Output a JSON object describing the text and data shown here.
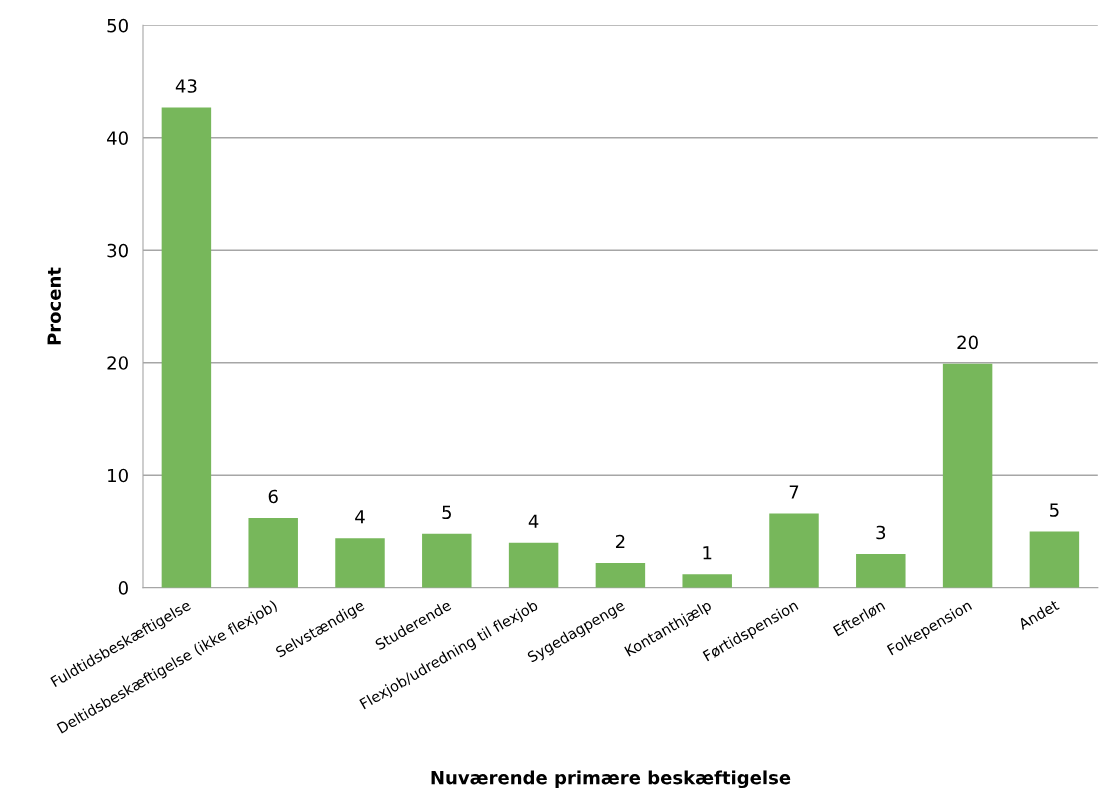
{
  "chart_data": {
    "type": "bar",
    "xlabel": "Nuværende primære beskæftigelse",
    "ylabel": "Procent",
    "categories": [
      "Fuldtidsbeskæftigelse",
      "Deltidsbeskæftigelse (ikke flexjob)",
      "Selvstændige",
      "Studerende",
      "Flexjob/udredning til flexjob",
      "Sygedagpenge",
      "Kontanthjælp",
      "Førtidspension",
      "Efterløn",
      "Folkepension",
      "Andet"
    ],
    "values": [
      42.7,
      6.2,
      4.4,
      4.8,
      4.0,
      2.2,
      1.2,
      6.6,
      3.0,
      19.9,
      5.0
    ],
    "value_labels": [
      "43",
      "6",
      "4",
      "5",
      "4",
      "2",
      "1",
      "7",
      "3",
      "20",
      "5"
    ],
    "color": "#77b75b",
    "ylim": [
      0,
      50
    ],
    "yticks": [
      0,
      10,
      20,
      30,
      40,
      50
    ],
    "grid": "y"
  }
}
